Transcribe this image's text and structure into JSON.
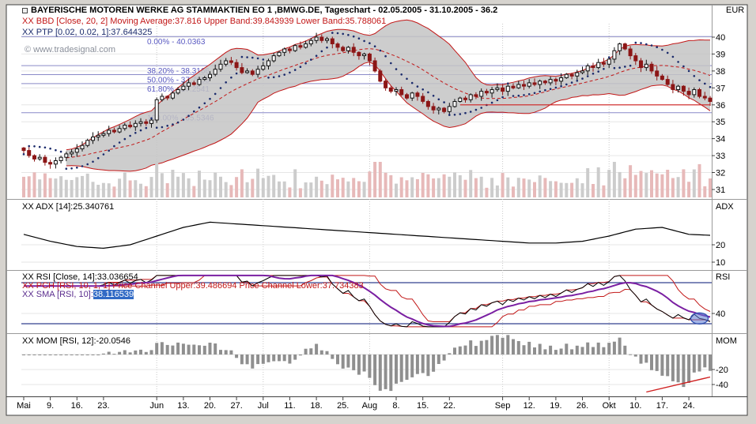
{
  "window": {
    "title": "BAYERISCHE MOTOREN WERKE AG STAMMAKTIEN EO 1 ,BMWG.DE, Tageschart - 02.05.2005 - 31.10.2005 - 36.2",
    "axis_currency": "EUR"
  },
  "legend": {
    "bbd": "XX BBD [Close, 20, 2] Moving Average:37.816 Upper Band:39.843939 Lower Band:35.788061",
    "ptp": "XX PTP [0.02, 0.02, 1]:37.644325",
    "watermark": "© www.tradesignal.com"
  },
  "panels": {
    "adx": {
      "label": "XX ADX [14]:25.340761",
      "axis_title": "ADX",
      "ticks": [
        20,
        10
      ]
    },
    "rsi": {
      "label_rsi": "XX RSI [Close, 14]:33.036654",
      "label_pch": "XX PCH [RSI, 10, 1, 1] Price Channel Upper:39.486694 Price Channel Lower:37.734383",
      "label_sma_prefix": "XX SMA [RSI, 10]:",
      "label_sma_value": "38.116539",
      "axis_title": "RSI",
      "ticks": [
        40
      ]
    },
    "mom": {
      "label": "XX MOM [RSI, 12]:-20.0546",
      "axis_title": "MOM",
      "ticks": [
        -20,
        -40
      ]
    }
  },
  "fibonacci": [
    {
      "label": "0.00% - 40.0363",
      "value": 40.0363
    },
    {
      "label": "38.20% - 38.3166",
      "value": 38.3166
    },
    {
      "label": "50.00% - 37.7855",
      "value": 37.7855
    },
    {
      "label": "61.80% - 37.2541",
      "value": 37.2541
    },
    {
      "label": "100.00% - 35.5346",
      "value": 35.5346
    }
  ],
  "chart_data": {
    "type": "candlestick",
    "symbol": "BMWG.DE",
    "name": "BAYERISCHE MOTOREN WERKE AG STAMMAKTIEN EO 1",
    "timeframe": "Tageschart",
    "date_range": "02.05.2005 - 31.10.2005",
    "last_price": 36.2,
    "price_axis_ticks": [
      40,
      39,
      38,
      37,
      36,
      35,
      34,
      33,
      32,
      31
    ],
    "ylim_main": [
      31,
      40.5
    ],
    "ylim_adx": [
      8,
      42
    ],
    "ylim_rsi": [
      25,
      80
    ],
    "ylim_mom": [
      -55,
      27
    ],
    "x_labels": [
      {
        "i": 0,
        "t": "Mai"
      },
      {
        "i": 5,
        "t": "9."
      },
      {
        "i": 10,
        "t": "16."
      },
      {
        "i": 15,
        "t": "23."
      },
      {
        "i": 25,
        "t": "Jun"
      },
      {
        "i": 30,
        "t": "13."
      },
      {
        "i": 35,
        "t": "20."
      },
      {
        "i": 40,
        "t": "27."
      },
      {
        "i": 45,
        "t": "Jul"
      },
      {
        "i": 50,
        "t": "11."
      },
      {
        "i": 55,
        "t": "18."
      },
      {
        "i": 60,
        "t": "25."
      },
      {
        "i": 65,
        "t": "Aug"
      },
      {
        "i": 70,
        "t": "8."
      },
      {
        "i": 75,
        "t": "15."
      },
      {
        "i": 80,
        "t": "22."
      },
      {
        "i": 90,
        "t": "Sep"
      },
      {
        "i": 95,
        "t": "12."
      },
      {
        "i": 100,
        "t": "19."
      },
      {
        "i": 105,
        "t": "26."
      },
      {
        "i": 110,
        "t": "Okt"
      },
      {
        "i": 115,
        "t": "10."
      },
      {
        "i": 120,
        "t": "17."
      },
      {
        "i": 125,
        "t": "24."
      }
    ],
    "month_gridlines": [
      25,
      45,
      65,
      90,
      110
    ],
    "closes": [
      33.3,
      33.0,
      32.8,
      32.9,
      32.6,
      32.5,
      32.7,
      32.9,
      33.1,
      33.2,
      33.4,
      33.6,
      33.9,
      34.1,
      34.2,
      34.3,
      34.5,
      34.4,
      34.6,
      34.8,
      34.7,
      34.9,
      35.0,
      34.9,
      35.1,
      36.3,
      36.5,
      36.4,
      36.7,
      36.9,
      37.1,
      37.3,
      37.2,
      37.5,
      37.6,
      37.8,
      38.1,
      38.4,
      38.6,
      38.5,
      38.2,
      37.9,
      38.0,
      37.8,
      38.1,
      38.3,
      38.6,
      38.9,
      39.1,
      39.3,
      39.2,
      39.5,
      39.4,
      39.6,
      39.8,
      40.0,
      39.8,
      39.9,
      39.6,
      39.4,
      39.2,
      39.4,
      39.1,
      38.9,
      39.0,
      38.6,
      38.0,
      37.4,
      37.0,
      36.8,
      36.9,
      36.6,
      36.4,
      36.7,
      36.5,
      36.2,
      35.9,
      35.7,
      35.8,
      35.6,
      35.9,
      36.2,
      36.4,
      36.3,
      36.6,
      36.5,
      36.8,
      36.7,
      36.9,
      37.0,
      36.8,
      37.1,
      37.0,
      37.2,
      37.1,
      37.3,
      37.2,
      37.4,
      37.3,
      37.5,
      37.4,
      37.6,
      37.8,
      37.7,
      37.9,
      38.0,
      38.3,
      38.2,
      38.5,
      38.4,
      38.7,
      39.2,
      39.6,
      39.3,
      38.9,
      38.6,
      38.2,
      38.4,
      38.0,
      37.7,
      37.5,
      37.2,
      36.9,
      37.1,
      36.8,
      36.6,
      36.9,
      36.5,
      36.4,
      36.2
    ],
    "adx_weekly": [
      26,
      22,
      19,
      18,
      20,
      25,
      30,
      33,
      32,
      31,
      30,
      29,
      28,
      27,
      26,
      25,
      24,
      23,
      22,
      21,
      21,
      22,
      25,
      29,
      30,
      26,
      25.3
    ],
    "rsi_levels": [
      70,
      30
    ],
    "indicator_parameters": {
      "bollinger": {
        "source": "Close",
        "period": 20,
        "width": 2
      },
      "ptp": [
        0.02,
        0.02,
        1
      ],
      "adx_period": 14,
      "rsi_period": 14,
      "pch": [
        10,
        1,
        1
      ],
      "sma_of_rsi": 10,
      "mom_of_rsi": 12
    },
    "annotations": {
      "support_line": {
        "price": 36.0,
        "from_index": 82,
        "to_index": 129
      },
      "rsi_ellipse": {
        "index": 127,
        "rx": 11,
        "ry": 7
      },
      "mom_trendline": {
        "x1_index": 117,
        "v1": -50,
        "x2_index": 129,
        "v2": -30
      }
    }
  }
}
